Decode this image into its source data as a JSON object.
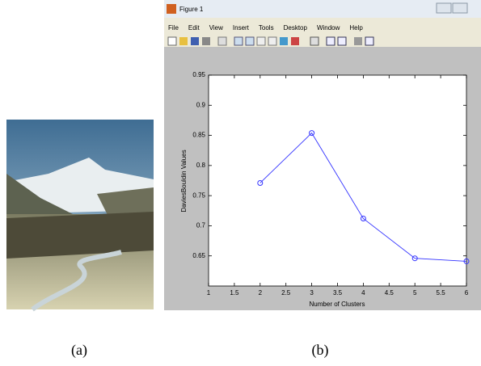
{
  "window": {
    "title": "Figure 1",
    "menu": [
      "File",
      "Edit",
      "View",
      "Insert",
      "Tools",
      "Desktop",
      "Window",
      "Help"
    ]
  },
  "captions": [
    "(a)",
    "(b)"
  ],
  "chart_data": {
    "type": "line",
    "x_label": "Number of Clusters",
    "y_label": "DaviesBouldin Values",
    "x": [
      2,
      3,
      4,
      5,
      6
    ],
    "values": [
      0.771,
      0.854,
      0.712,
      0.646,
      0.641
    ],
    "color": "#3333ff",
    "xlim": [
      1,
      6
    ],
    "xticks": [
      1,
      1.5,
      2,
      2.5,
      3,
      3.5,
      4,
      4.5,
      5,
      5.5,
      6
    ],
    "ylim": [
      0.6,
      0.95
    ],
    "yticks": [
      0.65,
      0.7,
      0.75,
      0.8,
      0.85,
      0.9,
      0.95
    ]
  }
}
